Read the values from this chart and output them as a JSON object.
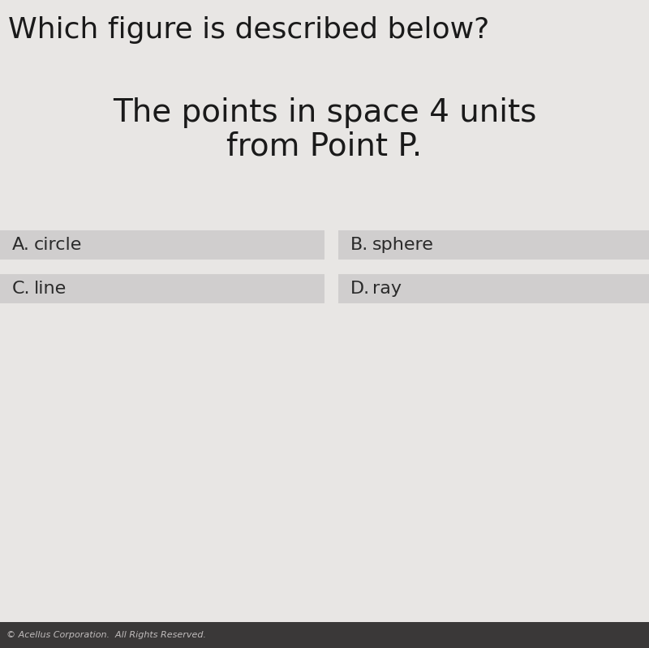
{
  "title_line1": "Which figure is described below?",
  "question_line1": "The points in space 4 units",
  "question_line2": "from Point P.",
  "options": [
    {
      "label": "A.",
      "text": "circle",
      "col": 0,
      "row": 0
    },
    {
      "label": "B.",
      "text": "sphere",
      "col": 1,
      "row": 0
    },
    {
      "label": "C.",
      "text": "line",
      "col": 0,
      "row": 1
    },
    {
      "label": "D.",
      "text": "ray",
      "col": 1,
      "row": 1
    }
  ],
  "footer": "© Acellus Corporation.  All Rights Reserved.",
  "bg_color": "#e8e6e4",
  "option_bg": "#d0cece",
  "footer_bg": "#3a3838",
  "title_fontsize": 26,
  "question_fontsize": 28,
  "option_fontsize": 16,
  "footer_fontsize": 8,
  "title_color": "#1a1a1a",
  "question_color": "#1a1a1a",
  "option_text_color": "#2a2a2a",
  "footer_text_color": "#c0bcbc"
}
